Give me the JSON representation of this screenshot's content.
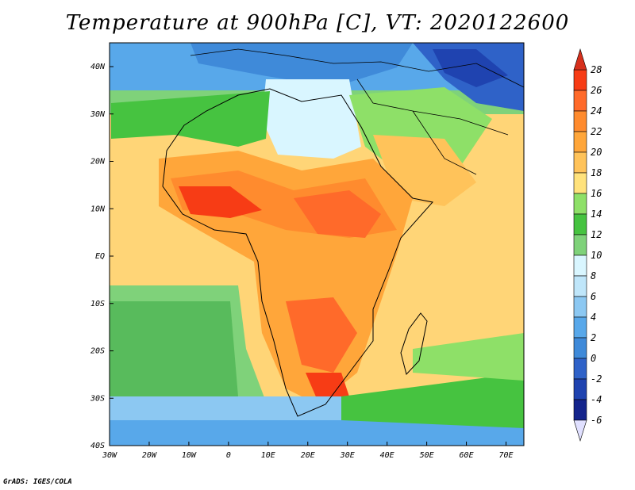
{
  "title": "Temperature at 900hPa [C], VT: 2020122600",
  "credit": "GrADS: IGES/COLA",
  "map": {
    "lon_ticks": [
      "30W",
      "20W",
      "10W",
      "0",
      "10E",
      "20E",
      "30E",
      "40E",
      "50E",
      "60E",
      "70E"
    ],
    "lat_ticks": [
      "40N",
      "30N",
      "20N",
      "10N",
      "EQ",
      "10S",
      "20S",
      "30S",
      "40S"
    ]
  },
  "colorbar": {
    "labels": [
      "28",
      "26",
      "24",
      "22",
      "20",
      "18",
      "16",
      "14",
      "12",
      "10",
      "8",
      "6",
      "4",
      "2",
      "0",
      "-2",
      "-4",
      "-6"
    ],
    "colors": [
      "#f73c15",
      "#ff6a2a",
      "#ff8b2e",
      "#ffa63a",
      "#ffc35a",
      "#ffe27c",
      "#8ee068",
      "#46c340",
      "#7fd27a",
      "#d9f6ff",
      "#bfe6fa",
      "#8cc8f2",
      "#58a8ea",
      "#3f8ad9",
      "#2f62c8",
      "#1f43b0",
      "#14248c"
    ],
    "top_arrow_color": "#d6301c",
    "bottom_arrow_color": "#e0e0ff"
  },
  "legend_colors": {
    "ocean_south": "#58bb5c",
    "ocean_tropical": "#ffd577",
    "sahara": "#d9f6ff",
    "europe": "#4c8fe0",
    "hot_core": "#ff6a2a"
  }
}
